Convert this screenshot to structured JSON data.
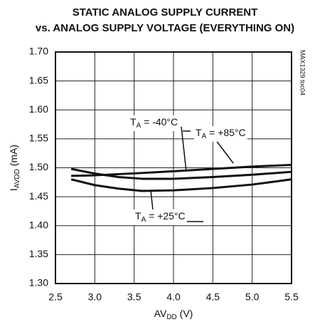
{
  "chart_data": {
    "type": "line",
    "title": "STATIC ANALOG SUPPLY CURRENT",
    "subtitle": "vs. ANALOG SUPPLY VOLTAGE (EVERYTHING ON)",
    "xlabel": {
      "main": "AV",
      "sub": "DD",
      "rest": " (V)"
    },
    "ylabel": {
      "main": "I",
      "sub": "AVDD",
      "rest": " (mA)"
    },
    "side_note": "MAX1329 toc04",
    "xlim": [
      2.5,
      5.5
    ],
    "ylim": [
      1.3,
      1.7
    ],
    "xticks": [
      2.5,
      {
        "value": 3,
        "label": "3.0"
      },
      3.5,
      {
        "value": 4,
        "label": "4.0"
      },
      4.5,
      {
        "value": 5,
        "label": "5.0"
      },
      5.5
    ],
    "yticks": [
      {
        "value": 1.3,
        "label": "1.30"
      },
      1.35,
      {
        "value": 1.4,
        "label": "1.40"
      },
      1.45,
      {
        "value": 1.5,
        "label": "1.50"
      },
      1.55,
      {
        "value": 1.6,
        "label": "1.60"
      },
      1.65,
      {
        "value": 1.7,
        "label": "1.70"
      }
    ],
    "grid": true,
    "x": [
      2.7,
      3.0,
      3.3,
      3.6,
      4.0,
      4.5,
      5.0,
      5.5
    ],
    "series": [
      {
        "label": {
          "main": "T",
          "sub": "A",
          "rest": " = -40°C"
        },
        "color": "#111111",
        "values": [
          1.498,
          1.49,
          1.484,
          1.481,
          1.481,
          1.484,
          1.488,
          1.493
        ]
      },
      {
        "label": {
          "main": "T",
          "sub": "A",
          "rest": " = +85°C"
        },
        "color": "#111111",
        "values": [
          1.486,
          1.487,
          1.489,
          1.491,
          1.494,
          1.498,
          1.502,
          1.505
        ]
      },
      {
        "label": {
          "main": "T",
          "sub": "A",
          "rest": " = +25°C"
        },
        "color": "#111111",
        "values": [
          1.48,
          1.47,
          1.464,
          1.46,
          1.461,
          1.465,
          1.471,
          1.48
        ]
      }
    ]
  }
}
